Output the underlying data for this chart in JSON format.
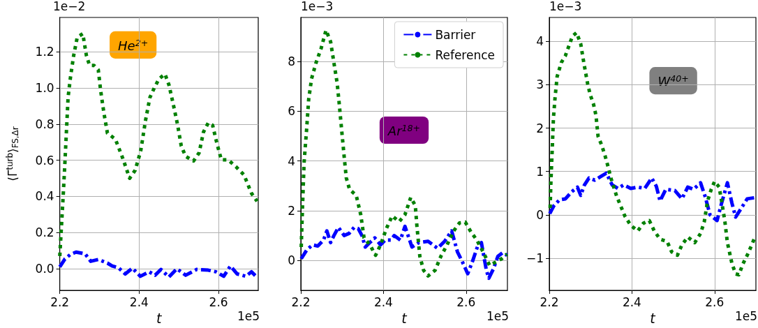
{
  "chart_data": [
    {
      "type": "line",
      "ylabel": "⟨Γ$^{turb}$⟩$_{FS,Δr}$",
      "xlabel": "t",
      "annotations": [
        "1e−2",
        "1e5",
        "He$^{2+}$"
      ],
      "xlim": [
        2.2,
        2.7
      ],
      "xticks": [
        2.2,
        2.4,
        2.6
      ],
      "ylim": [
        -0.12,
        1.39
      ],
      "yticks": [
        {
          "value": 0,
          "label": "0.0"
        },
        0.2,
        0.4,
        0.6,
        0.8,
        {
          "value": 1,
          "label": "1.0"
        },
        1.2
      ],
      "grid": true,
      "legend": false,
      "marker": "none",
      "series": [
        {
          "color": "#0000ff",
          "line_style": "dashed",
          "x": [
            2.2,
            2.213,
            2.227,
            2.241,
            2.264,
            2.278,
            2.297,
            2.32,
            2.332,
            2.348,
            2.365,
            2.383,
            2.403,
            2.425,
            2.44,
            2.455,
            2.475,
            2.495,
            2.517,
            2.545,
            2.574,
            2.593,
            2.613,
            2.63,
            2.647,
            2.669,
            2.683,
            2.697
          ],
          "values": [
            0.01,
            0.054,
            0.079,
            0.092,
            0.082,
            0.041,
            0.051,
            0.031,
            0.015,
            0.005,
            -0.029,
            0.003,
            -0.042,
            -0.017,
            -0.036,
            -0.004,
            -0.046,
            0.0,
            -0.036,
            -0.004,
            -0.008,
            -0.017,
            -0.042,
            0.015,
            -0.029,
            -0.042,
            -0.017,
            -0.048
          ]
        },
        {
          "color": "#008000",
          "line_style": "dotted",
          "x": [
            2.2,
            2.2045,
            2.209,
            2.213,
            2.217,
            2.221,
            2.227,
            2.235,
            2.244,
            2.258,
            2.267,
            2.275,
            2.286,
            2.297,
            2.303,
            2.311,
            2.32,
            2.34,
            2.359,
            2.376,
            2.39,
            2.404,
            2.416,
            2.427,
            2.438,
            2.45,
            2.465,
            2.475,
            2.486,
            2.497,
            2.506,
            2.517,
            2.537,
            2.551,
            2.562,
            2.574,
            2.585,
            2.596,
            2.607,
            2.624,
            2.644,
            2.664,
            2.683,
            2.697
          ],
          "values": [
            0.07,
            0.245,
            0.42,
            0.59,
            0.77,
            0.95,
            1.06,
            1.18,
            1.28,
            1.3,
            1.18,
            1.125,
            1.125,
            1.1,
            0.985,
            0.864,
            0.75,
            0.717,
            0.609,
            0.5,
            0.545,
            0.653,
            0.82,
            0.947,
            1.0,
            1.05,
            1.077,
            1.017,
            0.909,
            0.794,
            0.679,
            0.622,
            0.596,
            0.641,
            0.756,
            0.807,
            0.794,
            0.692,
            0.602,
            0.602,
            0.564,
            0.519,
            0.417,
            0.373
          ]
        }
      ]
    },
    {
      "type": "line",
      "xlabel": "t",
      "annotations": [
        "1e−3",
        "1e5",
        "Ar$^{18+}$"
      ],
      "xlim": [
        2.2,
        2.7
      ],
      "xticks": [
        2.2,
        2.4,
        2.6
      ],
      "ylim": [
        -1.2,
        9.76
      ],
      "yticks": [
        0,
        2,
        4,
        6,
        8
      ],
      "grid": true,
      "legend": "top right",
      "marker": "none",
      "series": [
        {
          "name": "Barrier",
          "color": "#0000ff",
          "line_style": "dashed",
          "x": [
            2.201,
            2.215,
            2.229,
            2.241,
            2.255,
            2.263,
            2.272,
            2.28,
            2.291,
            2.305,
            2.317,
            2.329,
            2.339,
            2.348,
            2.356,
            2.367,
            2.379,
            2.393,
            2.404,
            2.418,
            2.426,
            2.441,
            2.452,
            2.469,
            2.486,
            2.508,
            2.531,
            2.548,
            2.565,
            2.579,
            2.59,
            2.604,
            2.615,
            2.629,
            2.637,
            2.649,
            2.655,
            2.666,
            2.677,
            2.688,
            2.699
          ],
          "values": [
            0.07,
            0.44,
            0.63,
            0.58,
            0.82,
            1.19,
            0.72,
            1.0,
            1.33,
            1.0,
            1.09,
            1.33,
            1.28,
            1.0,
            0.54,
            0.72,
            0.91,
            0.63,
            0.82,
            0.82,
            1.0,
            0.82,
            1.37,
            0.54,
            0.72,
            0.77,
            0.49,
            0.77,
            1.19,
            0.35,
            -0.02,
            -0.53,
            -0.06,
            0.63,
            0.72,
            -0.39,
            -0.71,
            -0.34,
            0.17,
            0.31,
            0.21
          ]
        },
        {
          "name": "Reference",
          "color": "#008000",
          "line_style": "dotted",
          "x": [
            2.201,
            2.204,
            2.208,
            2.214,
            2.219,
            2.226,
            2.237,
            2.249,
            2.261,
            2.272,
            2.28,
            2.288,
            2.293,
            2.3,
            2.305,
            2.31,
            2.318,
            2.334,
            2.345,
            2.353,
            2.367,
            2.381,
            2.393,
            2.407,
            2.421,
            2.438,
            2.452,
            2.466,
            2.477,
            2.481,
            2.488,
            2.497,
            2.508,
            2.525,
            2.539,
            2.554,
            2.57,
            2.584,
            2.598,
            2.612,
            2.626,
            2.641,
            2.657,
            2.672,
            2.686,
            2.699
          ],
          "values": [
            0.54,
            2.11,
            3.97,
            5.26,
            6.47,
            7.3,
            7.95,
            8.51,
            9.25,
            8.79,
            7.95,
            7.12,
            6.28,
            5.03,
            4.15,
            3.32,
            2.85,
            2.62,
            1.84,
            0.91,
            0.63,
            0.21,
            0.63,
            1.28,
            1.79,
            1.56,
            1.84,
            2.53,
            2.21,
            1.37,
            0.17,
            -0.39,
            -0.62,
            -0.39,
            0.17,
            0.63,
            1.19,
            1.51,
            1.54,
            1.14,
            0.82,
            0.35,
            -0.2,
            -0.06,
            0.07,
            0.26
          ]
        }
      ]
    },
    {
      "type": "line",
      "xlabel": "t",
      "annotations": [
        "1e−3",
        "1e5",
        "W$^{40+}$"
      ],
      "xlim": [
        2.2,
        2.7
      ],
      "xticks": [
        2.2,
        2.4,
        2.6
      ],
      "ylim": [
        -1.74,
        4.55
      ],
      "yticks": [
        {
          "value": -1,
          "label": "−1"
        },
        0,
        1,
        2,
        3,
        4
      ],
      "grid": true,
      "legend": false,
      "marker": "none",
      "series": [
        {
          "color": "#0000ff",
          "line_style": "dashed",
          "x": [
            2.201,
            2.211,
            2.225,
            2.239,
            2.254,
            2.268,
            2.276,
            2.285,
            2.296,
            2.31,
            2.324,
            2.338,
            2.352,
            2.366,
            2.38,
            2.397,
            2.414,
            2.431,
            2.448,
            2.459,
            2.468,
            2.482,
            2.504,
            2.521,
            2.535,
            2.549,
            2.566,
            2.577,
            2.589,
            2.606,
            2.617,
            2.631,
            2.642,
            2.651,
            2.665,
            2.679,
            2.699
          ],
          "values": [
            0.03,
            0.21,
            0.35,
            0.37,
            0.53,
            0.64,
            0.45,
            0.69,
            0.85,
            0.8,
            0.88,
            0.96,
            0.69,
            0.61,
            0.69,
            0.61,
            0.64,
            0.61,
            0.85,
            0.66,
            0.32,
            0.59,
            0.56,
            0.37,
            0.64,
            0.59,
            0.74,
            0.43,
            0.0,
            -0.13,
            0.27,
            0.74,
            0.27,
            -0.05,
            0.16,
            0.37,
            0.4
          ]
        },
        {
          "color": "#008000",
          "line_style": "dotted",
          "x": [
            2.202,
            2.204,
            2.207,
            2.21,
            2.214,
            2.219,
            2.229,
            2.239,
            2.256,
            2.266,
            2.276,
            2.284,
            2.293,
            2.299,
            2.307,
            2.313,
            2.318,
            2.327,
            2.335,
            2.342,
            2.349,
            2.363,
            2.383,
            2.397,
            2.414,
            2.428,
            2.442,
            2.454,
            2.468,
            2.485,
            2.496,
            2.51,
            2.521,
            2.535,
            2.552,
            2.566,
            2.575,
            2.583,
            2.592,
            2.6,
            2.611,
            2.617,
            2.625,
            2.631,
            2.642,
            2.651,
            2.659,
            2.668,
            2.679,
            2.69,
            2.699
          ],
          "values": [
            0.16,
            0.8,
            1.49,
            2.23,
            2.71,
            3.19,
            3.51,
            3.67,
            4.12,
            4.2,
            3.94,
            3.48,
            3.01,
            2.77,
            2.55,
            2.29,
            1.81,
            1.6,
            1.36,
            1.12,
            0.85,
            0.43,
            -0.03,
            -0.24,
            -0.37,
            -0.19,
            -0.13,
            -0.37,
            -0.56,
            -0.61,
            -0.85,
            -0.93,
            -0.69,
            -0.51,
            -0.64,
            -0.43,
            -0.16,
            0.32,
            0.59,
            0.77,
            0.64,
            0.32,
            -0.16,
            -0.64,
            -1.12,
            -1.36,
            -1.38,
            -1.14,
            -0.93,
            -0.69,
            -0.48
          ]
        }
      ]
    }
  ]
}
